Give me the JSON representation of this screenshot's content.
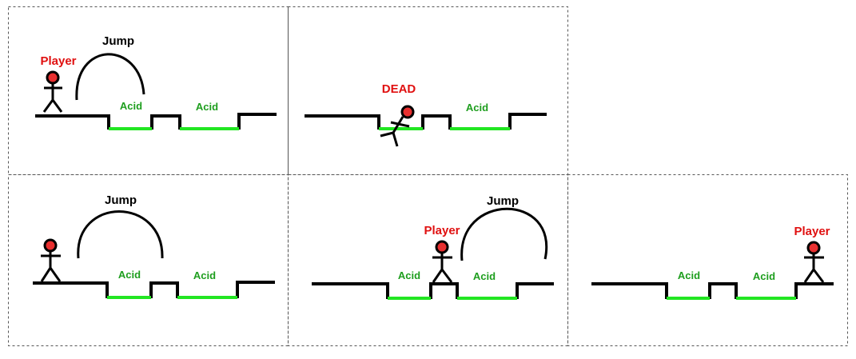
{
  "colors": {
    "ground": "#000000",
    "acid": "#22e622",
    "acid_label": "#1e9e1e",
    "player_label": "#e01010",
    "dead_label": "#e01010",
    "head_fill": "#e83030",
    "text": "#000000",
    "border": "#555555"
  },
  "labels": {
    "player": "Player",
    "jump": "Jump",
    "acid": "Acid",
    "dead": "DEAD"
  },
  "panels": [
    {
      "id": "panel-1",
      "player_state": "standing-left",
      "shows_jump_arc": true,
      "shows_player_label": true
    },
    {
      "id": "panel-2",
      "player_state": "dead-in-acid",
      "shows_jump_arc": false,
      "shows_player_label": false
    },
    {
      "id": "panel-3",
      "player_state": "standing-left",
      "shows_jump_arc": true,
      "shows_player_label": false
    },
    {
      "id": "panel-4",
      "player_state": "standing-on-pillar",
      "shows_jump_arc": true,
      "shows_player_label": true
    },
    {
      "id": "panel-5",
      "player_state": "standing-right",
      "shows_jump_arc": false,
      "shows_player_label": true
    }
  ]
}
